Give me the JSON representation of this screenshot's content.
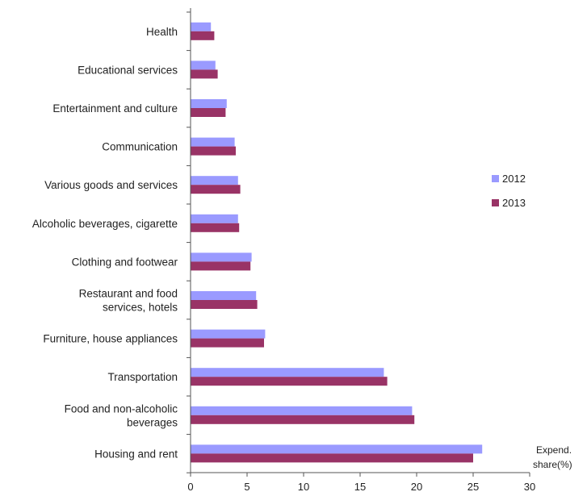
{
  "chart_data": {
    "type": "bar",
    "orientation": "horizontal",
    "categories": [
      "Health",
      "Educational services",
      "Entertainment and culture",
      "Communication",
      "Various goods and services",
      "Alcoholic beverages, cigarette",
      "Clothing and footwear",
      "Restaurant and food services, hotels",
      "Furniture, house appliances",
      "Transportation",
      "Food and non-alcoholic beverages",
      "Housing and rent"
    ],
    "category_lines": [
      [
        "Health"
      ],
      [
        "Educational services"
      ],
      [
        "Entertainment and culture"
      ],
      [
        "Communication"
      ],
      [
        "Various goods and services"
      ],
      [
        "Alcoholic beverages, cigarette"
      ],
      [
        "Clothing and footwear"
      ],
      [
        "Restaurant and food",
        "services, hotels"
      ],
      [
        "Furniture, house appliances"
      ],
      [
        "Transportation"
      ],
      [
        "Food and non-alcoholic",
        "beverages"
      ],
      [
        "Housing and rent"
      ]
    ],
    "series": [
      {
        "name": "2012",
        "color": "#9a9aff",
        "values": [
          1.8,
          2.2,
          3.2,
          3.9,
          4.2,
          4.2,
          5.4,
          5.8,
          6.6,
          17.1,
          19.6,
          25.8
        ]
      },
      {
        "name": "2013",
        "color": "#993366",
        "values": [
          2.1,
          2.4,
          3.1,
          4.0,
          4.4,
          4.3,
          5.3,
          5.9,
          6.5,
          17.4,
          19.8,
          25.0
        ]
      }
    ],
    "xlabel_lines": [
      "Expend.",
      "share(%)"
    ],
    "xlim": [
      0,
      30
    ],
    "xticks": [
      0,
      5,
      10,
      15,
      20,
      25,
      30
    ],
    "grid": false,
    "legend_position": "right"
  }
}
